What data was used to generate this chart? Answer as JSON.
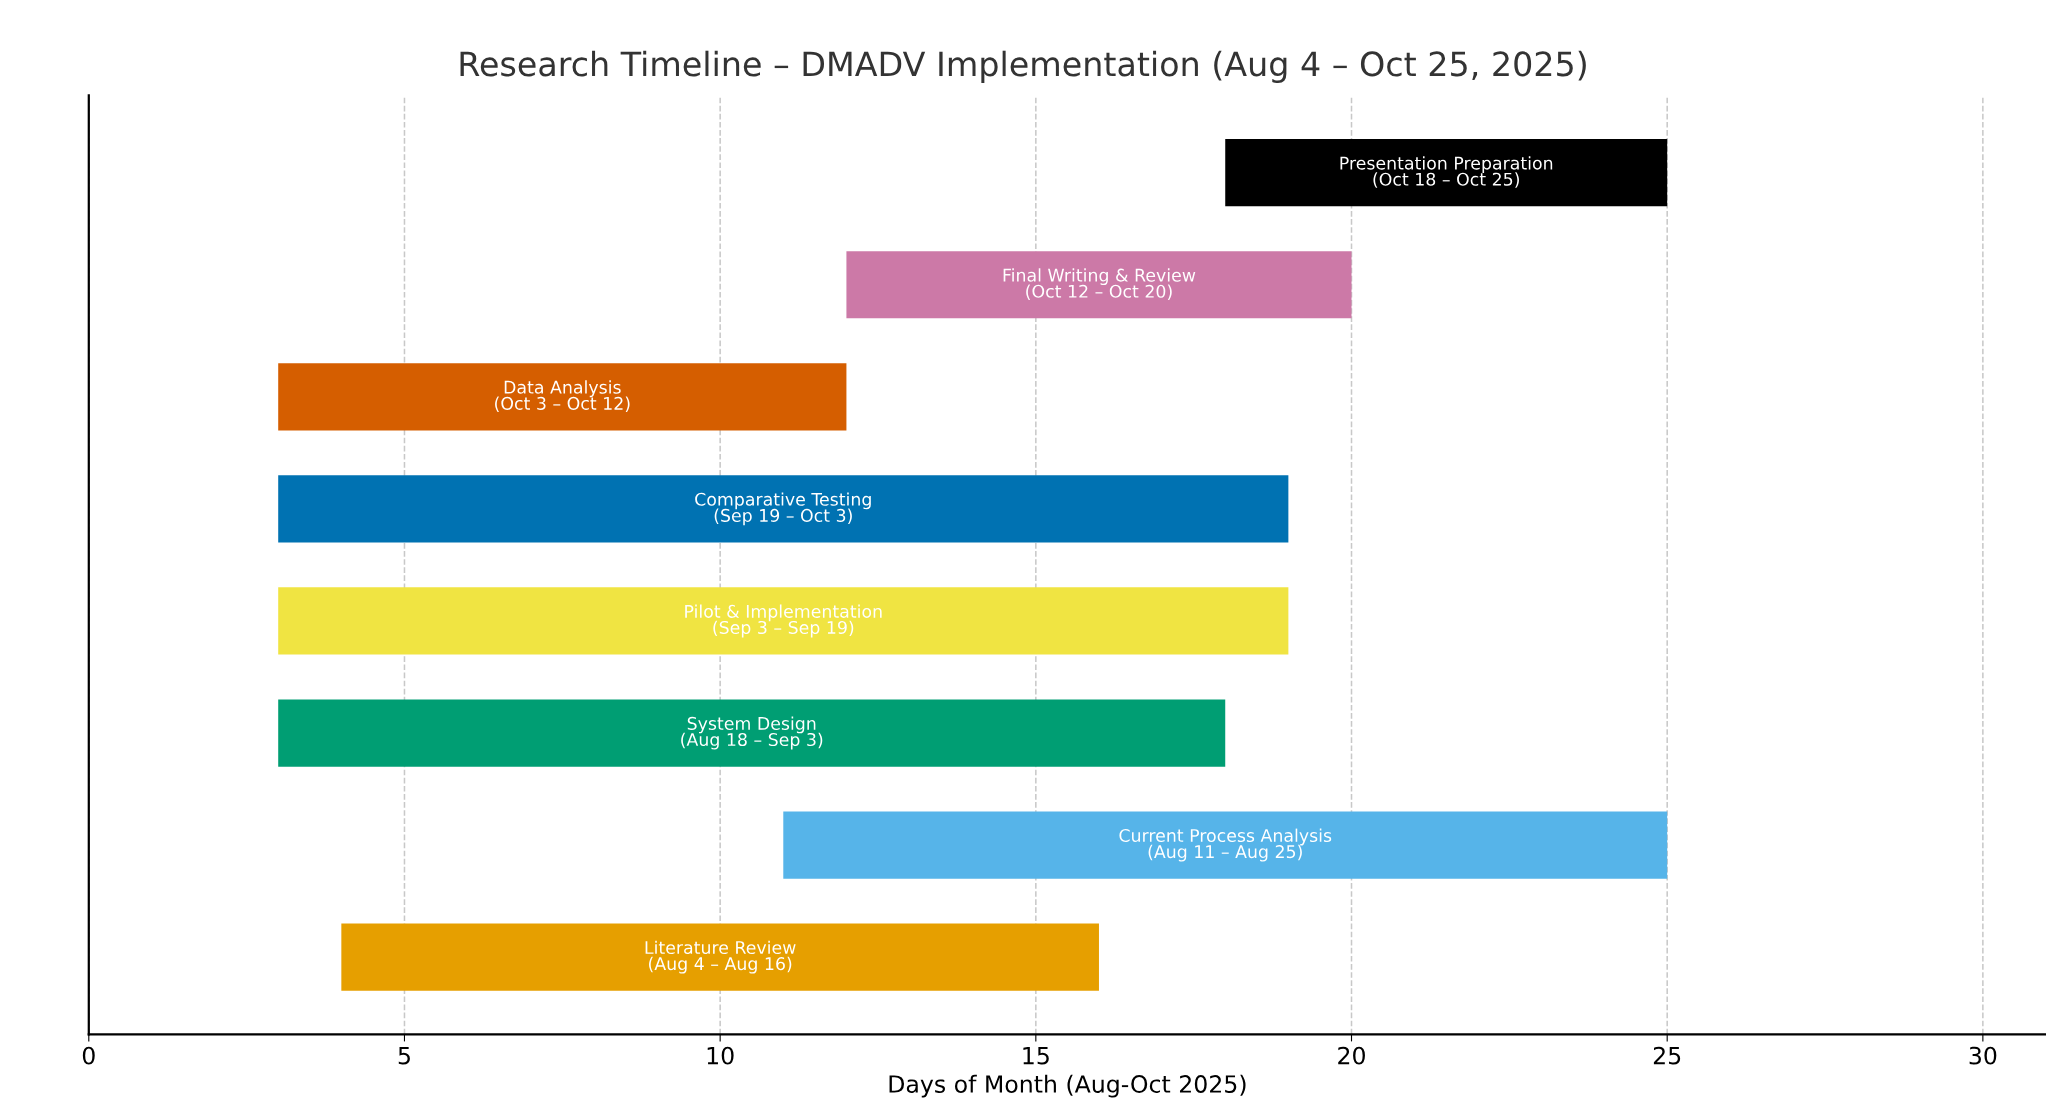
{
  "chart_data": {
    "type": "bar",
    "orientation": "horizontal",
    "title": "Research Timeline – DMADV Implementation (Aug 4 – Oct 25, 2025)",
    "xlabel": "Days of Month (Aug-Oct 2025)",
    "categories": [
      null,
      null,
      null,
      null,
      null,
      null,
      null,
      null
    ],
    "base": [
      18,
      12,
      3,
      3,
      3,
      3,
      11,
      4
    ],
    "values": [
      7,
      8,
      9,
      16,
      16,
      15,
      14,
      12
    ],
    "colors": [
      "#000000",
      "#cc79a7",
      "#d55e00",
      "#0072b2",
      "#f0e442",
      "#009e73",
      "#56b4e9",
      "#e69f00"
    ],
    "value_labels": [
      "Presentation Preparation\n(Oct 18 – Oct 25)",
      "Final Writing & Review\n(Oct 12 – Oct 20)",
      "Data Analysis\n(Oct 3 – Oct 12)",
      "Comparative Testing\n(Sep 19 – Oct 3)",
      "Pilot & Implementation\n(Sep 3 – Sep 19)",
      "System Design\n(Aug 18 – Sep 3)",
      "Current Process Analysis\n(Aug 11 – Aug 25)",
      "Literature Review\n(Aug 4 – Aug 16)"
    ],
    "xlim": [
      0,
      31
    ],
    "xticks": [
      0,
      5,
      10,
      15,
      20,
      25,
      30
    ],
    "grid": "x",
    "tick_labels": "x",
    "legend": false
  }
}
